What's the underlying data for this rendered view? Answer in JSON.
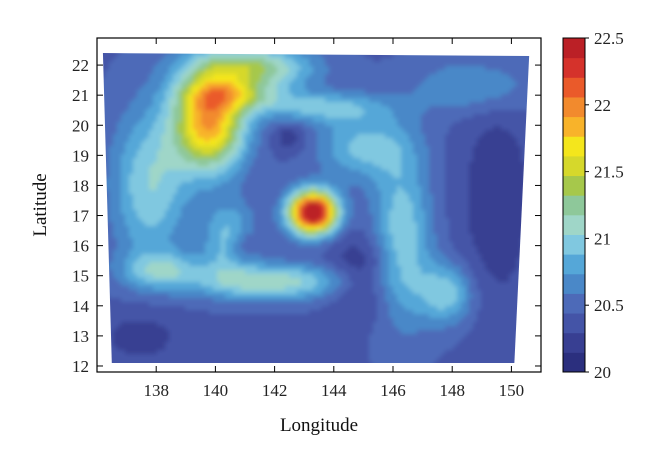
{
  "chart_data": {
    "type": "heatmap",
    "title": "",
    "xlabel": "Longitude",
    "ylabel": "Latitude",
    "xlim": [
      136,
      151
    ],
    "ylim": [
      11.8,
      22.9
    ],
    "x_ticks": [
      "138",
      "140",
      "142",
      "144",
      "146",
      "148",
      "150"
    ],
    "x_tick_values": [
      138,
      140,
      142,
      144,
      146,
      148,
      150
    ],
    "y_ticks": [
      "12",
      "13",
      "14",
      "15",
      "16",
      "17",
      "18",
      "19",
      "20",
      "21",
      "22"
    ],
    "y_tick_values": [
      12,
      13,
      14,
      15,
      16,
      17,
      18,
      19,
      20,
      21,
      22
    ],
    "colorbar": {
      "min": 20,
      "max": 22.5,
      "tick_labels": [
        "20",
        "20.5",
        "21",
        "21.5",
        "22",
        "22.5"
      ],
      "tick_values": [
        20,
        20.5,
        21,
        21.5,
        22,
        22.5
      ],
      "colors": [
        "#2b2f7e",
        "#383f92",
        "#4454a7",
        "#4d6ab8",
        "#4a88c8",
        "#55a7d8",
        "#80c8e0",
        "#9fd6c8",
        "#8ec89a",
        "#a6c84b",
        "#d6d82b",
        "#f4e61c",
        "#f8b32a",
        "#f28a2d",
        "#ea5a2a",
        "#d5322b",
        "#bb2026"
      ]
    },
    "domain_corners": [
      [
        136.2,
        22.4
      ],
      [
        150.6,
        22.3
      ],
      [
        150.1,
        12.1
      ],
      [
        136.5,
        12.1
      ]
    ],
    "field": [
      {
        "lon": 139.8,
        "lat": 20.1,
        "value": 1.5,
        "rx": 1.2,
        "ry": 1.6
      },
      {
        "lon": 140.6,
        "lat": 21.0,
        "value": 0.6,
        "rx": 1.6,
        "ry": 0.5
      },
      {
        "lon": 141.2,
        "lat": 21.9,
        "value": 0.9,
        "rx": 2.0,
        "ry": 0.7
      },
      {
        "lon": 137.8,
        "lat": 18.0,
        "value": 0.6,
        "rx": 1.3,
        "ry": 2.6
      },
      {
        "lon": 143.3,
        "lat": 17.1,
        "value": 2.3,
        "rx": 0.8,
        "ry": 0.7
      },
      {
        "lon": 142.0,
        "lat": 14.8,
        "value": 0.7,
        "rx": 2.8,
        "ry": 0.6
      },
      {
        "lon": 146.3,
        "lat": 16.2,
        "value": 0.6,
        "rx": 1.0,
        "ry": 2.8
      },
      {
        "lon": 145.0,
        "lat": 19.3,
        "value": 0.5,
        "rx": 1.6,
        "ry": 1.1
      },
      {
        "lon": 147.8,
        "lat": 14.4,
        "value": 0.55,
        "rx": 0.9,
        "ry": 1.0
      },
      {
        "lon": 140.5,
        "lat": 16.2,
        "value": 0.55,
        "rx": 0.9,
        "ry": 1.2
      },
      {
        "lon": 143.5,
        "lat": 20.6,
        "value": 0.5,
        "rx": 2.2,
        "ry": 0.5
      },
      {
        "lon": 148.8,
        "lat": 21.3,
        "value": 0.35,
        "rx": 2.0,
        "ry": 0.9
      },
      {
        "lon": 138.2,
        "lat": 15.2,
        "value": 0.45,
        "rx": 1.4,
        "ry": 0.6
      },
      {
        "lon": 140.9,
        "lat": 16.0,
        "value": -0.3,
        "rx": 0.5,
        "ry": 0.6
      },
      {
        "lon": 142.5,
        "lat": 19.6,
        "value": -0.25,
        "rx": 0.6,
        "ry": 0.5
      },
      {
        "lon": 145.0,
        "lat": 15.0,
        "value": -0.35,
        "rx": 1.2,
        "ry": 1.3
      },
      {
        "lon": 149.5,
        "lat": 17.5,
        "value": -0.25,
        "rx": 1.2,
        "ry": 3.5
      },
      {
        "lon": 137.5,
        "lat": 13.0,
        "value": -0.2,
        "rx": 1.5,
        "ry": 1.0
      }
    ]
  }
}
